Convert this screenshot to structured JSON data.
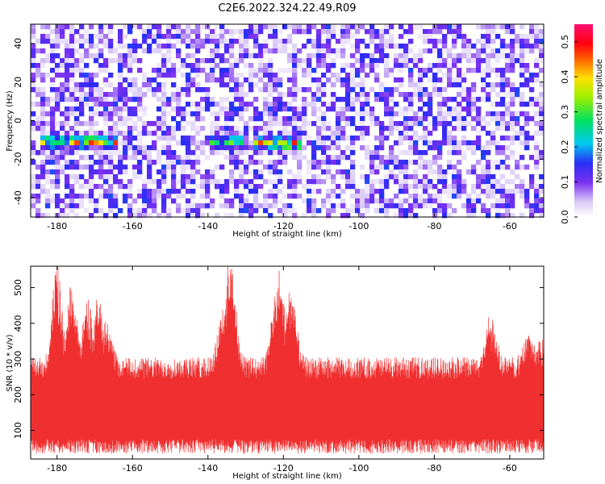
{
  "title": "C2E6.2022.324.22.49.R09",
  "colors": {
    "snr_line": "#f03030",
    "spectrogram_low": "#ffffff",
    "spectrogram_mid": "#7a2ff0",
    "spectrogram_high": "#ff0000"
  },
  "chart_data": [
    {
      "type": "heatmap",
      "xlabel": "Height of straight line (km)",
      "ylabel": "Frequency (Hz)",
      "xlim": [
        -187,
        -51
      ],
      "ylim": [
        -50,
        50
      ],
      "xticks": [
        -180,
        -160,
        -140,
        -120,
        -100,
        -80,
        -60
      ],
      "yticks": [
        -40,
        -20,
        0,
        20,
        40
      ],
      "colorbar": {
        "label": "Normalized spectral amplitude",
        "range": [
          0,
          0.55
        ],
        "ticks": [
          0.0,
          0.1,
          0.2,
          0.3,
          0.4,
          0.5
        ],
        "colormap": "white-purple-blue-cyan-green-yellow-red-magenta"
      },
      "features": [
        {
          "x_range": [
            -185,
            -164
          ],
          "y_center": -11,
          "peak": 0.5
        },
        {
          "x_range": [
            -140,
            -130
          ],
          "y_center": -11,
          "peak": 0.35
        },
        {
          "x_range": [
            -128,
            -115
          ],
          "y_center": -12,
          "peak": 0.5
        }
      ]
    },
    {
      "type": "line",
      "xlabel": "Height of straight line (km)",
      "ylabel": "SNR (10 * v/v)",
      "xlim": [
        -187,
        -51
      ],
      "ylim": [
        20,
        560
      ],
      "xticks": [
        -180,
        -160,
        -140,
        -120,
        -100,
        -80,
        -60
      ],
      "yticks": [
        100,
        200,
        300,
        400,
        500
      ],
      "baseline": 135,
      "bursts": [
        {
          "x": -180,
          "peak": 520
        },
        {
          "x": -176,
          "peak": 470
        },
        {
          "x": -172,
          "peak": 440
        },
        {
          "x": -169,
          "peak": 450
        },
        {
          "x": -167,
          "peak": 400
        },
        {
          "x": -134,
          "peak": 560
        },
        {
          "x": -136,
          "peak": 430
        },
        {
          "x": -121,
          "peak": 510
        },
        {
          "x": -118,
          "peak": 480
        },
        {
          "x": -122,
          "peak": 450
        },
        {
          "x": -65,
          "peak": 390
        },
        {
          "x": -55,
          "peak": 340
        },
        {
          "x": -52,
          "peak": 320
        }
      ]
    }
  ]
}
